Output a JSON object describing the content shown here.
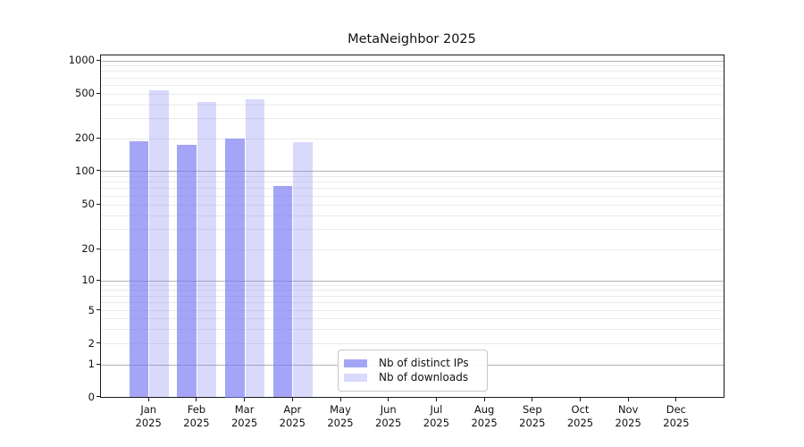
{
  "title": "MetaNeighbor 2025",
  "chart_data": {
    "type": "bar",
    "title": "MetaNeighbor 2025",
    "categories": [
      {
        "month": "Jan",
        "year": "2025"
      },
      {
        "month": "Feb",
        "year": "2025"
      },
      {
        "month": "Mar",
        "year": "2025"
      },
      {
        "month": "Apr",
        "year": "2025"
      },
      {
        "month": "May",
        "year": "2025"
      },
      {
        "month": "Jun",
        "year": "2025"
      },
      {
        "month": "Jul",
        "year": "2025"
      },
      {
        "month": "Aug",
        "year": "2025"
      },
      {
        "month": "Sep",
        "year": "2025"
      },
      {
        "month": "Oct",
        "year": "2025"
      },
      {
        "month": "Nov",
        "year": "2025"
      },
      {
        "month": "Dec",
        "year": "2025"
      }
    ],
    "series": [
      {
        "name": "Nb of distinct IPs",
        "color": "rgba(118,118,243,0.66)",
        "color_hex": "#a5a5f5",
        "values": [
          190,
          175,
          200,
          74,
          null,
          null,
          null,
          null,
          null,
          null,
          null,
          null
        ]
      },
      {
        "name": "Nb of downloads",
        "color": "rgba(118,118,243,0.28)",
        "color_hex": "#d9d9fa",
        "values": [
          535,
          425,
          450,
          185,
          null,
          null,
          null,
          null,
          null,
          null,
          null,
          null
        ]
      }
    ],
    "yticks": [
      0,
      1,
      2,
      5,
      10,
      20,
      50,
      100,
      200,
      500,
      1000
    ],
    "yscale": "symlog",
    "ylim": [
      0,
      1120
    ],
    "xlabel": "",
    "ylabel": "",
    "grid": "both",
    "legend_position": "bottom-center"
  }
}
